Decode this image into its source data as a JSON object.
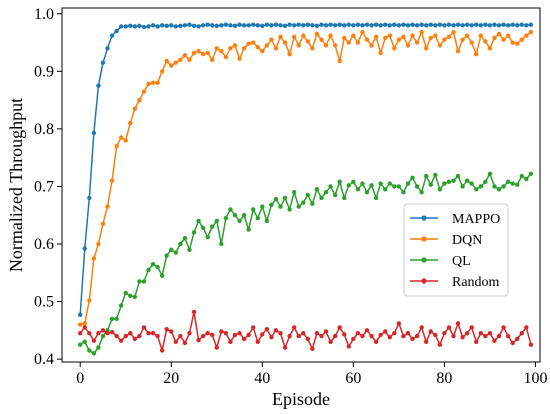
{
  "chart_data": {
    "type": "line",
    "title": "",
    "xlabel": "Episode",
    "ylabel": "Normalized Throughput",
    "xlim": [
      -4,
      101
    ],
    "ylim": [
      0.395,
      1.01
    ],
    "xticks": [
      0,
      20,
      40,
      60,
      80,
      100
    ],
    "yticks": [
      0.4,
      0.5,
      0.6,
      0.7,
      0.8,
      0.9,
      1.0
    ],
    "ytick_labels": [
      "0.4",
      "0.5",
      "0.6",
      "0.7",
      "0.8",
      "0.9",
      "1.0"
    ],
    "grid": false,
    "legend_position": "center-right",
    "x": [
      0,
      1,
      2,
      3,
      4,
      5,
      6,
      7,
      8,
      9,
      10,
      11,
      12,
      13,
      14,
      15,
      16,
      17,
      18,
      19,
      20,
      21,
      22,
      23,
      24,
      25,
      26,
      27,
      28,
      29,
      30,
      31,
      32,
      33,
      34,
      35,
      36,
      37,
      38,
      39,
      40,
      41,
      42,
      43,
      44,
      45,
      46,
      47,
      48,
      49,
      50,
      51,
      52,
      53,
      54,
      55,
      56,
      57,
      58,
      59,
      60,
      61,
      62,
      63,
      64,
      65,
      66,
      67,
      68,
      69,
      70,
      71,
      72,
      73,
      74,
      75,
      76,
      77,
      78,
      79,
      80,
      81,
      82,
      83,
      84,
      85,
      86,
      87,
      88,
      89,
      90,
      91,
      92,
      93,
      94,
      95,
      96,
      97,
      98,
      99
    ],
    "series": [
      {
        "name": "MAPPO",
        "color": "#1f77b4",
        "values": [
          0.477,
          0.592,
          0.68,
          0.793,
          0.875,
          0.915,
          0.94,
          0.962,
          0.97,
          0.978,
          0.978,
          0.979,
          0.978,
          0.979,
          0.977,
          0.978,
          0.98,
          0.978,
          0.98,
          0.979,
          0.98,
          0.978,
          0.979,
          0.98,
          0.981,
          0.979,
          0.978,
          0.98,
          0.981,
          0.98,
          0.979,
          0.98,
          0.981,
          0.98,
          0.979,
          0.981,
          0.98,
          0.98,
          0.981,
          0.98,
          0.979,
          0.981,
          0.98,
          0.981,
          0.98,
          0.979,
          0.981,
          0.98,
          0.981,
          0.98,
          0.981,
          0.98,
          0.979,
          0.981,
          0.98,
          0.981,
          0.98,
          0.981,
          0.98,
          0.981,
          0.98,
          0.981,
          0.98,
          0.981,
          0.98,
          0.981,
          0.98,
          0.981,
          0.98,
          0.981,
          0.98,
          0.981,
          0.98,
          0.981,
          0.98,
          0.981,
          0.98,
          0.981,
          0.98,
          0.981,
          0.98,
          0.981,
          0.98,
          0.981,
          0.98,
          0.981,
          0.98,
          0.981,
          0.98,
          0.981,
          0.98,
          0.981,
          0.98,
          0.981,
          0.98,
          0.981,
          0.98,
          0.981,
          0.98,
          0.981
        ]
      },
      {
        "name": "DQN",
        "color": "#ff7f0e",
        "values": [
          0.46,
          0.462,
          0.502,
          0.575,
          0.6,
          0.635,
          0.665,
          0.71,
          0.77,
          0.785,
          0.78,
          0.81,
          0.835,
          0.85,
          0.865,
          0.878,
          0.88,
          0.88,
          0.9,
          0.918,
          0.91,
          0.915,
          0.92,
          0.928,
          0.92,
          0.932,
          0.935,
          0.93,
          0.932,
          0.92,
          0.94,
          0.935,
          0.925,
          0.94,
          0.945,
          0.922,
          0.94,
          0.948,
          0.95,
          0.942,
          0.935,
          0.945,
          0.955,
          0.94,
          0.96,
          0.95,
          0.93,
          0.96,
          0.945,
          0.962,
          0.952,
          0.94,
          0.965,
          0.955,
          0.945,
          0.962,
          0.945,
          0.918,
          0.958,
          0.95,
          0.962,
          0.95,
          0.968,
          0.955,
          0.945,
          0.96,
          0.932,
          0.958,
          0.962,
          0.94,
          0.955,
          0.96,
          0.945,
          0.962,
          0.95,
          0.968,
          0.94,
          0.958,
          0.962,
          0.945,
          0.955,
          0.96,
          0.968,
          0.935,
          0.955,
          0.962,
          0.95,
          0.93,
          0.962,
          0.952,
          0.94,
          0.958,
          0.965,
          0.955,
          0.962,
          0.95,
          0.948,
          0.955,
          0.962,
          0.968
        ]
      },
      {
        "name": "QL",
        "color": "#2ca02c",
        "values": [
          0.425,
          0.43,
          0.415,
          0.41,
          0.42,
          0.44,
          0.45,
          0.47,
          0.47,
          0.493,
          0.515,
          0.51,
          0.508,
          0.535,
          0.535,
          0.555,
          0.565,
          0.56,
          0.545,
          0.58,
          0.59,
          0.585,
          0.6,
          0.61,
          0.59,
          0.62,
          0.64,
          0.628,
          0.612,
          0.63,
          0.64,
          0.6,
          0.645,
          0.66,
          0.65,
          0.64,
          0.65,
          0.625,
          0.66,
          0.645,
          0.665,
          0.64,
          0.668,
          0.678,
          0.665,
          0.68,
          0.66,
          0.69,
          0.665,
          0.672,
          0.685,
          0.67,
          0.695,
          0.68,
          0.69,
          0.7,
          0.685,
          0.708,
          0.68,
          0.702,
          0.708,
          0.695,
          0.705,
          0.69,
          0.702,
          0.68,
          0.705,
          0.695,
          0.705,
          0.7,
          0.7,
          0.69,
          0.705,
          0.715,
          0.7,
          0.69,
          0.718,
          0.703,
          0.72,
          0.695,
          0.705,
          0.708,
          0.71,
          0.718,
          0.7,
          0.71,
          0.705,
          0.695,
          0.7,
          0.708,
          0.722,
          0.7,
          0.695,
          0.7,
          0.708,
          0.705,
          0.703,
          0.718,
          0.713,
          0.722
        ]
      },
      {
        "name": "Random",
        "color": "#d62728",
        "values": [
          0.445,
          0.455,
          0.445,
          0.432,
          0.445,
          0.45,
          0.445,
          0.447,
          0.44,
          0.432,
          0.44,
          0.445,
          0.435,
          0.44,
          0.455,
          0.445,
          0.445,
          0.44,
          0.415,
          0.452,
          0.448,
          0.43,
          0.44,
          0.428,
          0.445,
          0.482,
          0.433,
          0.44,
          0.445,
          0.442,
          0.42,
          0.448,
          0.445,
          0.43,
          0.442,
          0.445,
          0.435,
          0.442,
          0.455,
          0.43,
          0.443,
          0.452,
          0.438,
          0.45,
          0.445,
          0.42,
          0.44,
          0.455,
          0.44,
          0.445,
          0.435,
          0.418,
          0.445,
          0.44,
          0.448,
          0.43,
          0.44,
          0.455,
          0.443,
          0.422,
          0.435,
          0.445,
          0.44,
          0.45,
          0.44,
          0.43,
          0.442,
          0.448,
          0.438,
          0.445,
          0.462,
          0.44,
          0.445,
          0.435,
          0.44,
          0.455,
          0.43,
          0.448,
          0.442,
          0.425,
          0.445,
          0.455,
          0.44,
          0.462,
          0.438,
          0.445,
          0.455,
          0.43,
          0.445,
          0.44,
          0.445,
          0.432,
          0.44,
          0.455,
          0.44,
          0.428,
          0.435,
          0.445,
          0.455,
          0.425
        ]
      }
    ]
  }
}
